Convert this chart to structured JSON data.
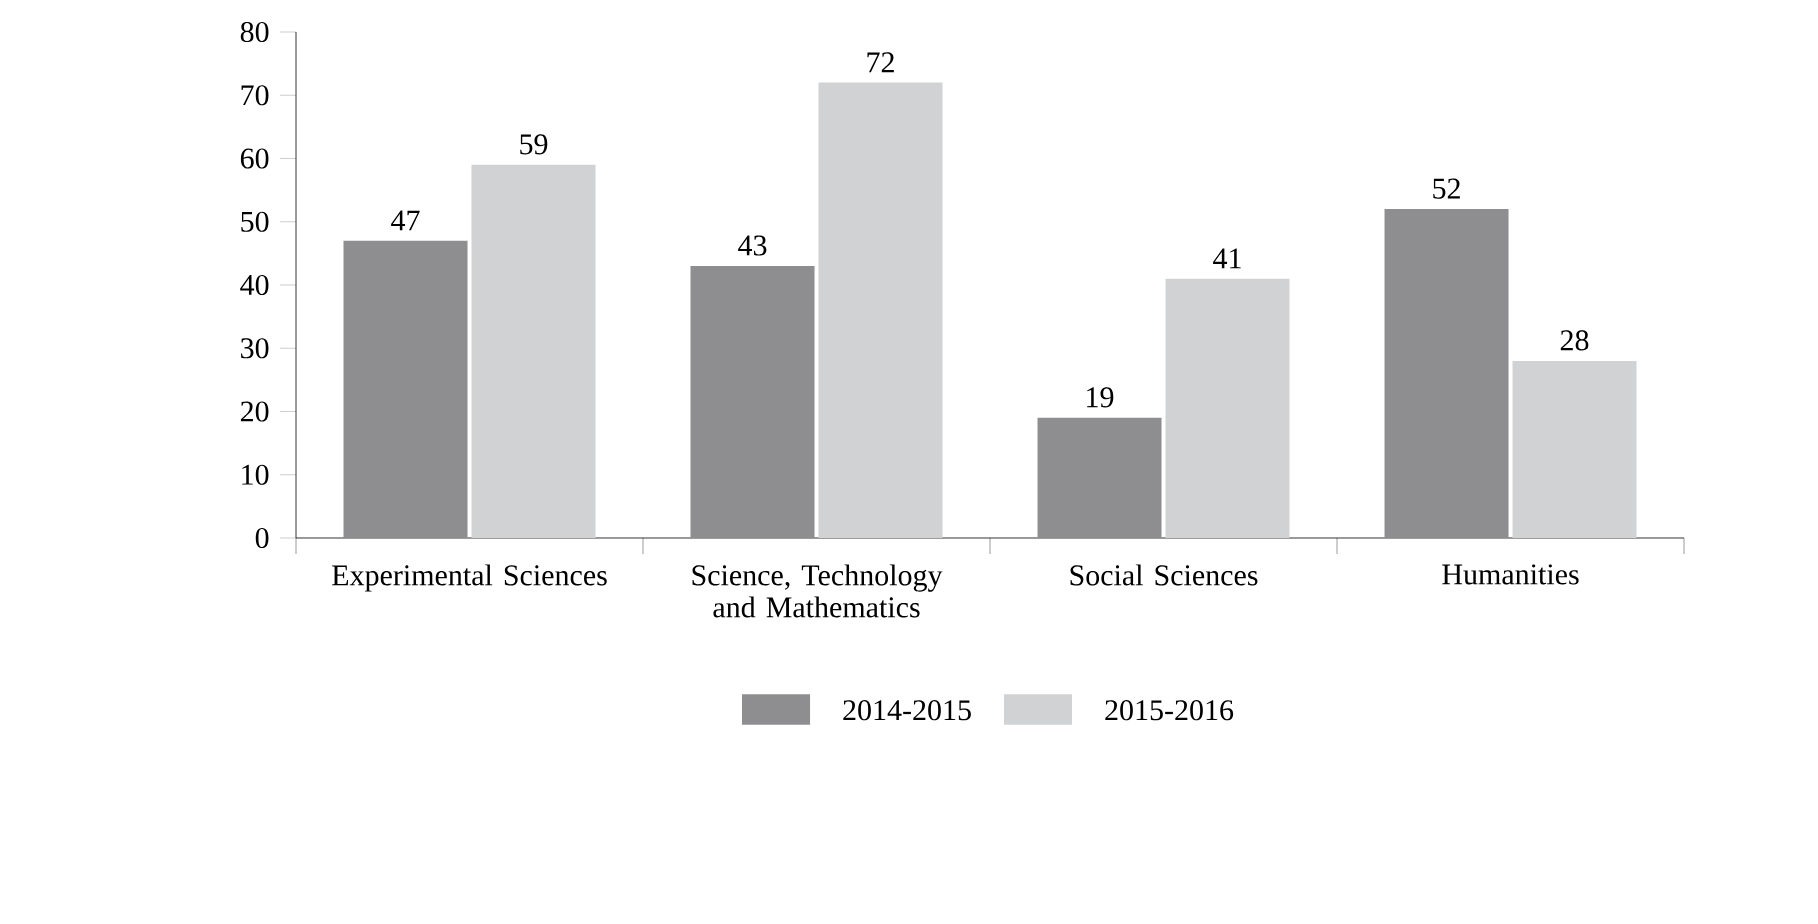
{
  "chart_data": {
    "type": "bar",
    "categories": [
      "Experimental Sciences",
      "Science, Technology and Mathematics",
      "Social Sciences",
      "Humanities"
    ],
    "series": [
      {
        "name": "2014-2015",
        "color": "#8e8e90",
        "values": [
          47,
          43,
          19,
          52
        ]
      },
      {
        "name": "2015-2016",
        "color": "#d1d2d4",
        "values": [
          59,
          72,
          41,
          28
        ]
      }
    ],
    "ylim": [
      0,
      80
    ],
    "yticks": [
      0,
      10,
      20,
      30,
      40,
      50,
      60,
      70,
      80
    ],
    "grid": false,
    "legend": "bottom",
    "data_labels": true
  }
}
